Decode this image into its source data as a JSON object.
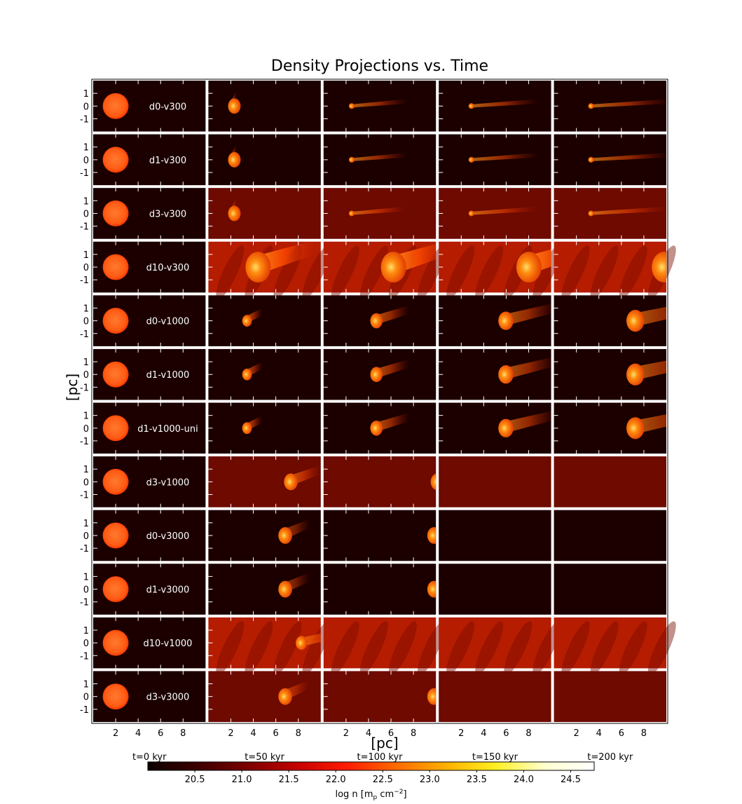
{
  "chart_data": {
    "type": "heatmap",
    "title": "Density Projections vs. Time",
    "ylabel": "[pc]",
    "xlabel": "[pc]",
    "ytick_labels": [
      "1",
      "0",
      "-1"
    ],
    "yticks": [
      1,
      0,
      -1
    ],
    "xtick_labels": [
      "2",
      "4",
      "6",
      "8"
    ],
    "xticks": [
      2,
      4,
      6,
      8
    ],
    "xlim": [
      0,
      10
    ],
    "ylim": [
      -2,
      2
    ],
    "time_labels": [
      "t=0 kyr",
      "t=50 kyr",
      "t=100 kyr",
      "t=150 kyr",
      "t=200 kyr"
    ],
    "colorbar": {
      "label": "log n [m_p cm^-2]",
      "label_main": "log n [m",
      "label_sub": "p",
      "label_mid": " cm",
      "label_sup": "−2",
      "label_end": "]",
      "range": [
        20.0,
        24.75
      ],
      "ticks": [
        20.5,
        21.0,
        21.5,
        22.0,
        22.5,
        23.0,
        23.5,
        24.0,
        24.5
      ],
      "tick_labels": [
        "20.5",
        "21.0",
        "21.5",
        "22.0",
        "22.5",
        "23.0",
        "23.5",
        "24.0",
        "24.5"
      ],
      "colormap": "hot",
      "colors": [
        "#0d0000",
        "#3b0000",
        "#7a0000",
        "#c40000",
        "#ff1a00",
        "#ff6a00",
        "#ffb000",
        "#ffef20",
        "#ffffd0",
        "#ffffff"
      ]
    },
    "rows": [
      {
        "label": "d0-v300",
        "background": "dark"
      },
      {
        "label": "d1-v300",
        "background": "dark"
      },
      {
        "label": "d3-v300",
        "background": "medium"
      },
      {
        "label": "d10-v300",
        "background": "bright"
      },
      {
        "label": "d0-v1000",
        "background": "dark"
      },
      {
        "label": "d1-v1000",
        "background": "dark"
      },
      {
        "label": "d1-v1000-uni",
        "background": "dark"
      },
      {
        "label": "d3-v1000",
        "background": "medium"
      },
      {
        "label": "d0-v3000",
        "background": "dark"
      },
      {
        "label": "d1-v3000",
        "background": "dark"
      },
      {
        "label": "d10-v1000",
        "background": "bright"
      },
      {
        "label": "d3-v3000",
        "background": "medium"
      }
    ]
  }
}
